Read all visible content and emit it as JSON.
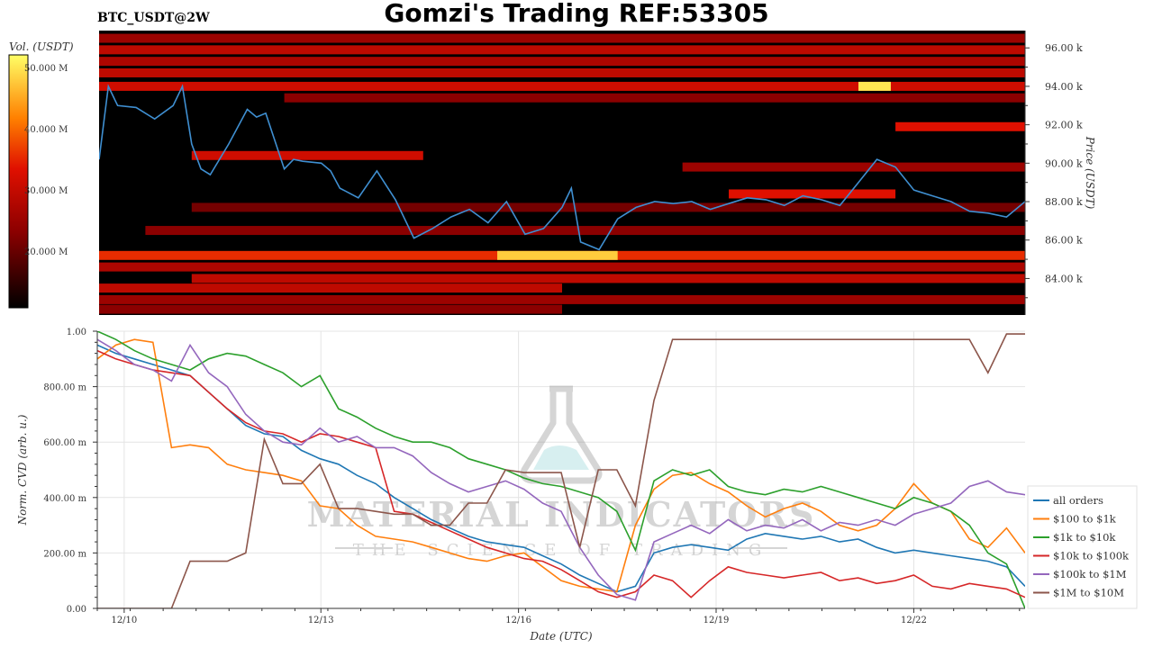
{
  "header": {
    "title": "Gomzi's Trading REF:53305",
    "symbol": "BTC_USDT@2W"
  },
  "colorbar": {
    "label": "Vol. (USDT)",
    "ticks": [
      "50.000 M",
      "40.000 M",
      "30.000 M",
      "20.000 M"
    ]
  },
  "watermark": {
    "line1": "MATERIAL INDICATORS",
    "line2": "THE SCIENCE OF TRADING"
  },
  "chart_data": [
    {
      "type": "heatmap",
      "title": "",
      "ylabel": "Price (USDT)",
      "y_ticks": [
        "84.00 k",
        "86.00 k",
        "88.00 k",
        "90.00 k",
        "92.00 k",
        "94.00 k",
        "96.00 k"
      ],
      "ylim": [
        82.1,
        96.9
      ],
      "colors": {
        "background": "#000000",
        "price_line": "#3f8fd1"
      },
      "price_series": {
        "x": [
          0,
          0.01,
          0.02,
          0.04,
          0.06,
          0.08,
          0.09,
          0.1,
          0.11,
          0.12,
          0.14,
          0.16,
          0.17,
          0.18,
          0.2,
          0.21,
          0.22,
          0.24,
          0.25,
          0.26,
          0.28,
          0.3,
          0.32,
          0.34,
          0.36,
          0.38,
          0.4,
          0.42,
          0.44,
          0.46,
          0.48,
          0.5,
          0.51,
          0.52,
          0.54,
          0.56,
          0.58,
          0.6,
          0.62,
          0.64,
          0.66,
          0.68,
          0.7,
          0.72,
          0.74,
          0.76,
          0.78,
          0.8,
          0.82,
          0.84,
          0.86,
          0.88,
          0.9,
          0.92,
          0.94,
          0.96,
          0.98,
          1.0
        ],
        "values": [
          90.2,
          94.0,
          93.0,
          92.9,
          92.3,
          93.0,
          94.0,
          91.0,
          89.7,
          89.4,
          91.0,
          92.8,
          92.4,
          92.6,
          89.7,
          90.2,
          90.1,
          90.0,
          89.6,
          88.7,
          88.2,
          89.6,
          88.1,
          86.1,
          86.6,
          87.2,
          87.6,
          86.9,
          88.0,
          86.3,
          86.6,
          87.7,
          88.7,
          85.9,
          85.5,
          87.1,
          87.7,
          88.0,
          87.9,
          88.0,
          87.6,
          87.9,
          88.2,
          88.1,
          87.8,
          88.3,
          88.1,
          87.8,
          89.0,
          90.2,
          89.8,
          88.6,
          88.3,
          88.0,
          87.5,
          87.4,
          87.2,
          88.0
        ]
      },
      "levels": [
        {
          "price": 96.5,
          "from": 0.0,
          "to": 1.0,
          "intensity": 0.35
        },
        {
          "price": 95.9,
          "from": 0.0,
          "to": 1.0,
          "intensity": 0.45
        },
        {
          "price": 95.3,
          "from": 0.0,
          "to": 1.0,
          "intensity": 0.4
        },
        {
          "price": 94.7,
          "from": 0.0,
          "to": 1.0,
          "intensity": 0.45
        },
        {
          "price": 94.0,
          "from": 0.0,
          "to": 1.0,
          "intensity": 0.5
        },
        {
          "price": 94.0,
          "from": 0.82,
          "to": 0.855,
          "intensity": 0.95
        },
        {
          "price": 93.4,
          "from": 0.2,
          "to": 1.0,
          "intensity": 0.3
        },
        {
          "price": 91.9,
          "from": 0.86,
          "to": 1.0,
          "intensity": 0.55
        },
        {
          "price": 90.4,
          "from": 0.1,
          "to": 0.35,
          "intensity": 0.5
        },
        {
          "price": 89.8,
          "from": 0.63,
          "to": 1.0,
          "intensity": 0.35
        },
        {
          "price": 88.4,
          "from": 0.68,
          "to": 0.86,
          "intensity": 0.55
        },
        {
          "price": 87.7,
          "from": 0.1,
          "to": 1.0,
          "intensity": 0.25
        },
        {
          "price": 86.5,
          "from": 0.05,
          "to": 1.0,
          "intensity": 0.3
        },
        {
          "price": 85.2,
          "from": 0.0,
          "to": 1.0,
          "intensity": 0.6
        },
        {
          "price": 85.2,
          "from": 0.43,
          "to": 0.56,
          "intensity": 0.9
        },
        {
          "price": 84.6,
          "from": 0.0,
          "to": 1.0,
          "intensity": 0.4
        },
        {
          "price": 84.0,
          "from": 0.1,
          "to": 1.0,
          "intensity": 0.45
        },
        {
          "price": 83.5,
          "from": 0.0,
          "to": 0.5,
          "intensity": 0.45
        },
        {
          "price": 82.9,
          "from": 0.0,
          "to": 1.0,
          "intensity": 0.35
        },
        {
          "price": 82.4,
          "from": 0.0,
          "to": 0.5,
          "intensity": 0.3
        }
      ]
    },
    {
      "type": "line",
      "title": "",
      "xlabel": "Date (UTC)",
      "ylabel": "Norm. CVD (arb. u.)",
      "x_tick_labels": [
        "12/10",
        "12/13",
        "12/16",
        "12/19",
        "12/22"
      ],
      "x_tick_positions": [
        0.029,
        0.241,
        0.454,
        0.667,
        0.88
      ],
      "y_tick_labels": [
        "0.00",
        "200.00 m",
        "400.00 m",
        "600.00 m",
        "800.00 m",
        "1.00"
      ],
      "ylim": [
        0,
        1
      ],
      "grid": true,
      "legend_position": "right",
      "x": [
        0,
        0.02,
        0.04,
        0.06,
        0.08,
        0.1,
        0.12,
        0.14,
        0.16,
        0.18,
        0.2,
        0.22,
        0.24,
        0.26,
        0.28,
        0.3,
        0.32,
        0.34,
        0.36,
        0.38,
        0.4,
        0.42,
        0.44,
        0.46,
        0.48,
        0.5,
        0.52,
        0.54,
        0.56,
        0.58,
        0.6,
        0.62,
        0.64,
        0.66,
        0.68,
        0.7,
        0.72,
        0.74,
        0.76,
        0.78,
        0.8,
        0.82,
        0.84,
        0.86,
        0.88,
        0.9,
        0.92,
        0.94,
        0.96,
        0.98,
        1.0
      ],
      "series": [
        {
          "name": "all orders",
          "color": "#1f77b4",
          "values": [
            0.95,
            0.92,
            0.9,
            0.88,
            0.86,
            0.84,
            0.78,
            0.72,
            0.66,
            0.63,
            0.62,
            0.57,
            0.54,
            0.52,
            0.48,
            0.45,
            0.4,
            0.36,
            0.32,
            0.29,
            0.26,
            0.24,
            0.23,
            0.22,
            0.19,
            0.16,
            0.12,
            0.09,
            0.06,
            0.08,
            0.2,
            0.22,
            0.23,
            0.22,
            0.21,
            0.25,
            0.27,
            0.26,
            0.25,
            0.26,
            0.24,
            0.25,
            0.22,
            0.2,
            0.21,
            0.2,
            0.19,
            0.18,
            0.17,
            0.15,
            0.08
          ]
        },
        {
          "name": "$100 to $1k",
          "color": "#ff7f0e",
          "values": [
            0.9,
            0.95,
            0.97,
            0.96,
            0.58,
            0.59,
            0.58,
            0.52,
            0.5,
            0.49,
            0.48,
            0.46,
            0.37,
            0.36,
            0.3,
            0.26,
            0.25,
            0.24,
            0.22,
            0.2,
            0.18,
            0.17,
            0.19,
            0.2,
            0.15,
            0.1,
            0.08,
            0.07,
            0.06,
            0.3,
            0.43,
            0.48,
            0.49,
            0.45,
            0.42,
            0.37,
            0.33,
            0.36,
            0.38,
            0.35,
            0.3,
            0.28,
            0.3,
            0.36,
            0.45,
            0.38,
            0.35,
            0.25,
            0.22,
            0.29,
            0.2
          ]
        },
        {
          "name": "$1k to $10k",
          "color": "#2ca02c",
          "values": [
            1.0,
            0.97,
            0.93,
            0.9,
            0.88,
            0.86,
            0.9,
            0.92,
            0.91,
            0.88,
            0.85,
            0.8,
            0.84,
            0.72,
            0.69,
            0.65,
            0.62,
            0.6,
            0.6,
            0.58,
            0.54,
            0.52,
            0.5,
            0.47,
            0.45,
            0.44,
            0.42,
            0.4,
            0.35,
            0.21,
            0.46,
            0.5,
            0.48,
            0.5,
            0.44,
            0.42,
            0.41,
            0.43,
            0.42,
            0.44,
            0.42,
            0.4,
            0.38,
            0.36,
            0.4,
            0.38,
            0.35,
            0.3,
            0.2,
            0.16,
            0.0
          ]
        },
        {
          "name": "$10k to $100k",
          "color": "#d62728",
          "values": [
            0.93,
            0.9,
            0.88,
            0.86,
            0.85,
            0.84,
            0.78,
            0.72,
            0.67,
            0.64,
            0.63,
            0.6,
            0.63,
            0.62,
            0.6,
            0.58,
            0.35,
            0.34,
            0.31,
            0.28,
            0.25,
            0.22,
            0.2,
            0.18,
            0.17,
            0.14,
            0.1,
            0.06,
            0.04,
            0.06,
            0.12,
            0.1,
            0.04,
            0.1,
            0.15,
            0.13,
            0.12,
            0.11,
            0.12,
            0.13,
            0.1,
            0.11,
            0.09,
            0.1,
            0.12,
            0.08,
            0.07,
            0.09,
            0.08,
            0.07,
            0.04
          ]
        },
        {
          "name": "$100k to $1M",
          "color": "#9467bd",
          "values": [
            0.97,
            0.93,
            0.88,
            0.86,
            0.82,
            0.95,
            0.85,
            0.8,
            0.7,
            0.64,
            0.6,
            0.59,
            0.65,
            0.6,
            0.62,
            0.58,
            0.58,
            0.55,
            0.49,
            0.45,
            0.42,
            0.44,
            0.46,
            0.43,
            0.38,
            0.35,
            0.22,
            0.12,
            0.05,
            0.03,
            0.24,
            0.27,
            0.3,
            0.27,
            0.32,
            0.28,
            0.3,
            0.29,
            0.32,
            0.28,
            0.31,
            0.3,
            0.32,
            0.3,
            0.34,
            0.36,
            0.38,
            0.44,
            0.46,
            0.42,
            0.41
          ]
        },
        {
          "name": "$1M to $10M",
          "color": "#8c564b",
          "values": [
            0.0,
            0.0,
            0.0,
            0.0,
            0.0,
            0.17,
            0.17,
            0.17,
            0.2,
            0.61,
            0.45,
            0.45,
            0.52,
            0.36,
            0.36,
            0.35,
            0.34,
            0.34,
            0.3,
            0.3,
            0.38,
            0.38,
            0.5,
            0.49,
            0.49,
            0.49,
            0.22,
            0.5,
            0.5,
            0.37,
            0.75,
            0.97,
            0.97,
            0.97,
            0.97,
            0.97,
            0.97,
            0.97,
            0.97,
            0.97,
            0.97,
            0.97,
            0.97,
            0.97,
            0.97,
            0.97,
            0.97,
            0.97,
            0.85,
            0.99,
            0.99
          ]
        }
      ]
    }
  ]
}
